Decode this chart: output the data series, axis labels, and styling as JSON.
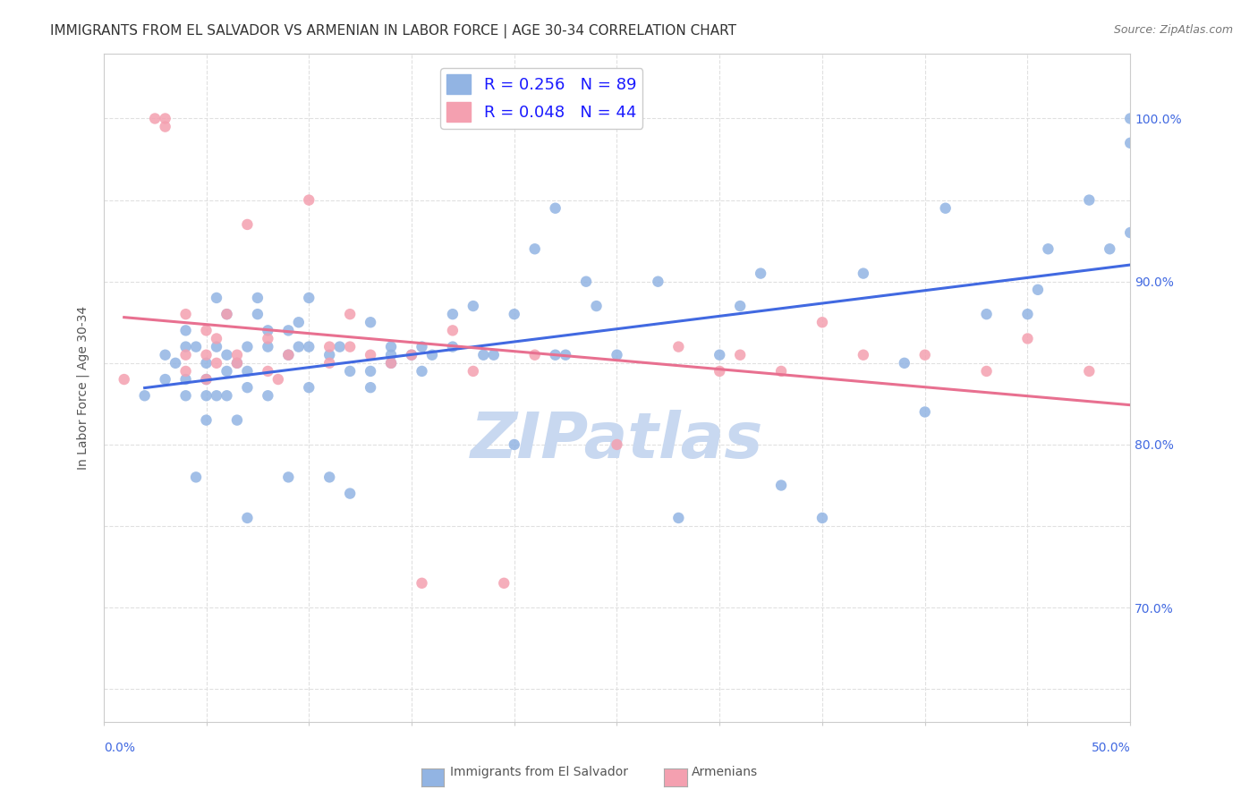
{
  "title": "IMMIGRANTS FROM EL SALVADOR VS ARMENIAN IN LABOR FORCE | AGE 30-34 CORRELATION CHART",
  "source": "Source: ZipAtlas.com",
  "ylabel": "In Labor Force | Age 30-34",
  "xlim": [
    0.0,
    0.5
  ],
  "ylim": [
    0.63,
    1.04
  ],
  "blue_R": 0.256,
  "blue_N": 89,
  "pink_R": 0.048,
  "pink_N": 44,
  "blue_color": "#92b4e3",
  "pink_color": "#f4a0b0",
  "blue_line_color": "#4169e1",
  "pink_line_color": "#e87090",
  "legend_label_blue": "Immigrants from El Salvador",
  "legend_label_pink": "Armenians",
  "watermark_text": "ZIPatlas",
  "watermark_color": "#c8d8f0",
  "background_color": "#ffffff",
  "grid_color": "#e0e0e0",
  "title_color": "#333333",
  "axis_label_color": "#4169e1",
  "blue_x": [
    0.02,
    0.03,
    0.03,
    0.035,
    0.04,
    0.04,
    0.04,
    0.04,
    0.045,
    0.045,
    0.05,
    0.05,
    0.05,
    0.05,
    0.055,
    0.055,
    0.055,
    0.06,
    0.06,
    0.06,
    0.06,
    0.065,
    0.065,
    0.07,
    0.07,
    0.07,
    0.07,
    0.075,
    0.075,
    0.08,
    0.08,
    0.08,
    0.09,
    0.09,
    0.09,
    0.095,
    0.095,
    0.1,
    0.1,
    0.1,
    0.11,
    0.11,
    0.115,
    0.12,
    0.12,
    0.13,
    0.13,
    0.13,
    0.14,
    0.14,
    0.14,
    0.15,
    0.155,
    0.155,
    0.16,
    0.17,
    0.17,
    0.18,
    0.185,
    0.19,
    0.2,
    0.2,
    0.21,
    0.22,
    0.22,
    0.225,
    0.235,
    0.24,
    0.25,
    0.27,
    0.28,
    0.3,
    0.31,
    0.32,
    0.33,
    0.35,
    0.37,
    0.39,
    0.4,
    0.41,
    0.43,
    0.45,
    0.46,
    0.455,
    0.48,
    0.49,
    0.5,
    0.5,
    0.5
  ],
  "blue_y": [
    0.83,
    0.855,
    0.84,
    0.85,
    0.83,
    0.86,
    0.87,
    0.84,
    0.86,
    0.78,
    0.83,
    0.85,
    0.815,
    0.84,
    0.89,
    0.86,
    0.83,
    0.855,
    0.845,
    0.88,
    0.83,
    0.85,
    0.815,
    0.86,
    0.835,
    0.845,
    0.755,
    0.89,
    0.88,
    0.87,
    0.86,
    0.83,
    0.855,
    0.87,
    0.78,
    0.86,
    0.875,
    0.86,
    0.89,
    0.835,
    0.855,
    0.78,
    0.86,
    0.77,
    0.845,
    0.875,
    0.845,
    0.835,
    0.86,
    0.855,
    0.85,
    0.855,
    0.86,
    0.845,
    0.855,
    0.86,
    0.88,
    0.885,
    0.855,
    0.855,
    0.88,
    0.8,
    0.92,
    0.855,
    0.945,
    0.855,
    0.9,
    0.885,
    0.855,
    0.9,
    0.755,
    0.855,
    0.885,
    0.905,
    0.775,
    0.755,
    0.905,
    0.85,
    0.82,
    0.945,
    0.88,
    0.88,
    0.92,
    0.895,
    0.95,
    0.92,
    1.0,
    0.985,
    0.93
  ],
  "pink_x": [
    0.01,
    0.025,
    0.03,
    0.03,
    0.04,
    0.04,
    0.04,
    0.05,
    0.05,
    0.05,
    0.055,
    0.055,
    0.06,
    0.065,
    0.065,
    0.07,
    0.08,
    0.08,
    0.085,
    0.09,
    0.1,
    0.11,
    0.11,
    0.12,
    0.12,
    0.13,
    0.14,
    0.15,
    0.155,
    0.17,
    0.18,
    0.195,
    0.21,
    0.25,
    0.28,
    0.3,
    0.31,
    0.33,
    0.35,
    0.37,
    0.4,
    0.43,
    0.45,
    0.48
  ],
  "pink_y": [
    0.84,
    1.0,
    1.0,
    0.995,
    0.855,
    0.88,
    0.845,
    0.84,
    0.87,
    0.855,
    0.865,
    0.85,
    0.88,
    0.85,
    0.855,
    0.935,
    0.845,
    0.865,
    0.84,
    0.855,
    0.95,
    0.85,
    0.86,
    0.86,
    0.88,
    0.855,
    0.85,
    0.855,
    0.715,
    0.87,
    0.845,
    0.715,
    0.855,
    0.8,
    0.86,
    0.845,
    0.855,
    0.845,
    0.875,
    0.855,
    0.855,
    0.845,
    0.865,
    0.845
  ]
}
